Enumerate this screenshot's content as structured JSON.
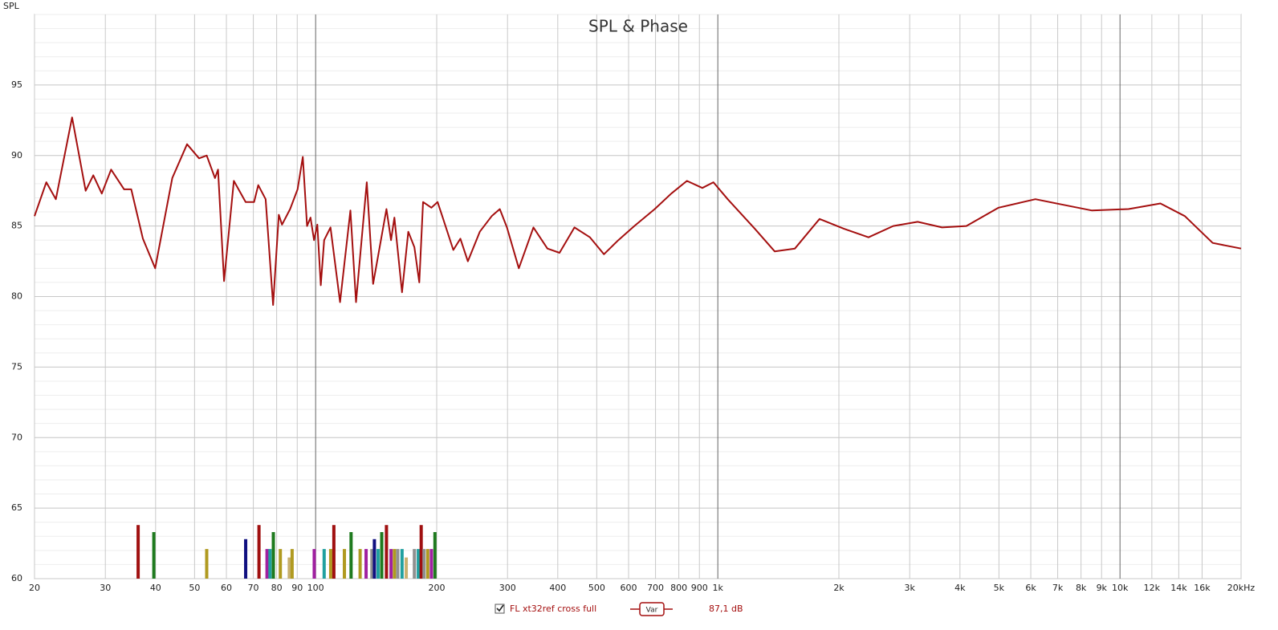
{
  "chart_data": {
    "type": "line",
    "title": "SPL & Phase",
    "y_axis_label": "SPL",
    "log_x": true,
    "grid": true,
    "xlim": [
      20,
      20000
    ],
    "ylim": [
      60,
      100
    ],
    "yticks": [
      60,
      65,
      70,
      75,
      80,
      85,
      90,
      95
    ],
    "xticks": [
      20,
      30,
      40,
      50,
      60,
      70,
      80,
      90,
      100,
      200,
      300,
      400,
      500,
      600,
      700,
      800,
      900,
      {
        "value": 1000,
        "label": "1k"
      },
      {
        "value": 2000,
        "label": "2k"
      },
      {
        "value": 3000,
        "label": "3k"
      },
      {
        "value": 4000,
        "label": "4k"
      },
      {
        "value": 5000,
        "label": "5k"
      },
      {
        "value": 6000,
        "label": "6k"
      },
      {
        "value": 7000,
        "label": "7k"
      },
      {
        "value": 8000,
        "label": "8k"
      },
      {
        "value": 9000,
        "label": "9k"
      },
      {
        "value": 10000,
        "label": "10k"
      },
      {
        "value": 12000,
        "label": "12k"
      },
      {
        "value": 14000,
        "label": "14k"
      },
      {
        "value": 16000,
        "label": "16k"
      },
      {
        "value": 20000,
        "label": "20kHz"
      }
    ],
    "series": [
      {
        "name": "FL xt32ref cross full",
        "color": "#a40f0f",
        "x": [
          20,
          21.4,
          22.6,
          24.8,
          26.8,
          28.0,
          29.4,
          31.0,
          33.4,
          34.8,
          37.2,
          39.9,
          44.0,
          47.9,
          51.3,
          53.6,
          56.2,
          57.2,
          59.2,
          62.6,
          67.0,
          70.3,
          72.0,
          75.1,
          78.4,
          81.0,
          82.5,
          86.4,
          90.2,
          92.9,
          95.2,
          97.1,
          99.1,
          101,
          103,
          105,
          108.9,
          115,
          122,
          126,
          134,
          139,
          150,
          154,
          157,
          164,
          170,
          176,
          181,
          185,
          194,
          201,
          207,
          220,
          229,
          239,
          256,
          274,
          287,
          299,
          320,
          348,
          377,
          404,
          440,
          481,
          521,
          566,
          620,
          697,
          766,
          838,
          915,
          975,
          1058,
          1236,
          1385,
          1555,
          1790,
          2060,
          2370,
          2730,
          3140,
          3610,
          4150,
          4990,
          6160,
          7250,
          8520,
          10500,
          12600,
          14500,
          17000,
          20000
        ],
        "values": [
          85.7,
          88.1,
          86.9,
          92.7,
          87.5,
          88.6,
          87.3,
          89.0,
          87.6,
          87.6,
          84.1,
          82.0,
          88.4,
          90.8,
          89.8,
          90.0,
          88.4,
          89.0,
          81.1,
          88.2,
          86.7,
          86.7,
          87.9,
          86.9,
          79.4,
          85.8,
          85.1,
          86.2,
          87.6,
          89.9,
          85.0,
          85.6,
          84.0,
          85.1,
          80.8,
          84.0,
          84.9,
          79.6,
          86.1,
          79.6,
          88.1,
          80.9,
          86.2,
          84.0,
          85.6,
          80.3,
          84.6,
          83.5,
          81.0,
          86.7,
          86.3,
          86.7,
          85.6,
          83.3,
          84.1,
          82.5,
          84.6,
          85.7,
          86.2,
          84.9,
          82.0,
          84.9,
          83.4,
          83.1,
          84.9,
          84.2,
          83.0,
          84.0,
          85.0,
          86.2,
          87.3,
          88.2,
          87.7,
          88.1,
          86.9,
          84.8,
          83.2,
          83.4,
          85.5,
          84.8,
          84.2,
          85.0,
          85.3,
          84.9,
          85.0,
          86.3,
          86.9,
          86.5,
          86.1,
          86.2,
          86.6,
          85.7,
          83.8,
          83.4
        ]
      }
    ],
    "filter_bars": {
      "x": [
        36.2,
        39.6,
        53.6,
        67.0,
        72.3,
        75.7,
        77.0,
        78.5,
        81.7,
        86.0,
        87.4,
        99.2,
        105,
        109,
        111,
        117.9,
        122.5,
        129,
        133.5,
        138,
        140,
        143,
        146,
        150,
        154,
        157,
        160,
        164,
        168,
        176,
        180,
        183,
        186,
        190,
        194,
        198
      ],
      "values": [
        63.8,
        63.3,
        62.1,
        62.8,
        63.8,
        62.1,
        62.1,
        63.3,
        62.1,
        61.5,
        62.1,
        62.1,
        62.1,
        62.1,
        63.8,
        62.1,
        63.3,
        62.1,
        62.1,
        62.1,
        62.8,
        62.1,
        63.3,
        63.8,
        62.1,
        62.1,
        62.1,
        62.1,
        61.5,
        62.1,
        62.1,
        63.8,
        62.1,
        62.1,
        62.1,
        63.3
      ],
      "colors": [
        "#a01010",
        "#1e7a1e",
        "#b09a20",
        "#101080",
        "#a01010",
        "#a020a0",
        "#20a0a0",
        "#1e7a1e",
        "#b09a20",
        "#c8b070",
        "#b09a20",
        "#a020a0",
        "#20a0a0",
        "#b09a20",
        "#a01010",
        "#b09a20",
        "#1e7a1e",
        "#b09a20",
        "#a020a0",
        "#909090",
        "#101080",
        "#20a0a0",
        "#1e7a1e",
        "#a01010",
        "#a020a0",
        "#b09a20",
        "#909090",
        "#20a0a0",
        "#c8b070",
        "#909090",
        "#20a0a0",
        "#a01010",
        "#909090",
        "#b09a20",
        "#a020a0",
        "#1e7a1e"
      ]
    },
    "var_label": "Var",
    "level_label": "87,1 dB"
  }
}
